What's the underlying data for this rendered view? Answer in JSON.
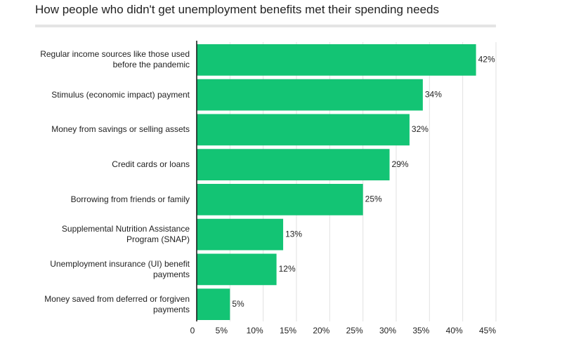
{
  "chart_data": {
    "type": "bar",
    "orientation": "horizontal",
    "title": "How people who didn't get unemployment benefits met their spending needs",
    "categories": [
      "Regular income sources like those used before the pandemic",
      "Stimulus (economic impact) payment",
      "Money from savings or selling assets",
      "Credit cards or loans",
      "Borrowing from friends or family",
      "Supplemental Nutrition Assistance Program (SNAP)",
      "Unemployment insurance (UI) benefit payments",
      "Money saved from deferred or forgiven payments"
    ],
    "values": [
      42,
      34,
      32,
      29,
      25,
      13,
      12,
      5
    ],
    "value_labels": [
      "42%",
      "34%",
      "32%",
      "29%",
      "25%",
      "13%",
      "12%",
      "5%"
    ],
    "color": "#13c474",
    "xlim": [
      0,
      45
    ],
    "xticks": [
      0,
      {
        "value": 5,
        "label": "5%"
      },
      {
        "value": 10,
        "label": "10%"
      },
      {
        "value": 15,
        "label": "15%"
      },
      {
        "value": 20,
        "label": "20%"
      },
      {
        "value": 25,
        "label": "25%"
      },
      {
        "value": 30,
        "label": "30%"
      },
      {
        "value": 35,
        "label": "35%"
      },
      {
        "value": 40,
        "label": "40%"
      },
      {
        "value": 45,
        "label": "45%"
      }
    ],
    "grid": true
  }
}
